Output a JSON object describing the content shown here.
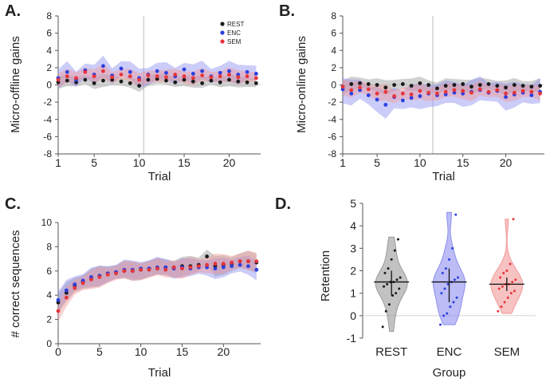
{
  "figure": {
    "series_names": [
      "REST",
      "ENC",
      "SEM"
    ]
  },
  "colors": {
    "REST": "#1a1a1a",
    "ENC": "#2b3fe0",
    "SEM": "#e8353a",
    "REST_band": "#9a9a9a",
    "ENC_band": "#8f8ff0",
    "SEM_band": "#f29a9a"
  },
  "chart_data": [
    {
      "panel_label": "A.",
      "type": "scatter",
      "title": "",
      "xlabel": "Trial",
      "ylabel": "Micro-offline gains",
      "xlim": [
        1,
        23.5
      ],
      "ylim": [
        -8,
        8
      ],
      "xticks": [
        1,
        5,
        10,
        15,
        20
      ],
      "yticks": [
        -8,
        -6,
        -4,
        -2,
        0,
        2,
        4,
        6,
        8
      ],
      "vline_x": 10.5,
      "legend": {
        "position": "top-right",
        "entries": [
          "REST",
          "ENC",
          "SEM"
        ]
      },
      "x": [
        1,
        2,
        3,
        4,
        5,
        6,
        7,
        8,
        9,
        10,
        11,
        12,
        13,
        14,
        15,
        16,
        17,
        18,
        19,
        20,
        21,
        22,
        23
      ],
      "series": [
        {
          "name": "REST",
          "band": 0.6,
          "values": [
            0.3,
            0.5,
            0.3,
            0.6,
            0.2,
            0.5,
            0.6,
            0.4,
            0.2,
            -0.1,
            0.6,
            0.7,
            0.5,
            0.3,
            0.6,
            0.4,
            0.2,
            0.5,
            0.3,
            0.6,
            0.4,
            0.3,
            0.2
          ]
        },
        {
          "name": "ENC",
          "band": 1.0,
          "values": [
            0.8,
            1.5,
            0.6,
            1.7,
            1.2,
            2.2,
            1.1,
            1.9,
            1.5,
            0.8,
            1.2,
            1.6,
            1.4,
            1.0,
            1.8,
            1.3,
            1.6,
            1.0,
            1.4,
            1.6,
            1.2,
            1.5,
            1.3
          ]
        },
        {
          "name": "SEM",
          "band": 0.7,
          "values": [
            0.6,
            1.0,
            0.8,
            1.5,
            1.0,
            1.6,
            0.9,
            1.2,
            1.0,
            0.6,
            1.1,
            1.0,
            0.9,
            1.2,
            1.0,
            0.8,
            1.1,
            0.9,
            1.0,
            1.2,
            0.9,
            1.0,
            0.8
          ]
        }
      ]
    },
    {
      "panel_label": "B.",
      "type": "scatter",
      "title": "",
      "xlabel": "Trial",
      "ylabel": "Micro-online gains",
      "xlim": [
        1,
        24.5
      ],
      "ylim": [
        -8,
        8
      ],
      "xticks": [
        1,
        5,
        10,
        15,
        20
      ],
      "yticks": [
        -8,
        -6,
        -4,
        -2,
        0,
        2,
        4,
        6,
        8
      ],
      "vline_x": 11.5,
      "x": [
        1,
        2,
        3,
        4,
        5,
        6,
        7,
        8,
        9,
        10,
        11,
        12,
        13,
        14,
        15,
        16,
        17,
        18,
        19,
        20,
        21,
        22,
        23,
        24
      ],
      "series": [
        {
          "name": "REST",
          "band": 0.7,
          "values": [
            -0.2,
            0.1,
            0.2,
            0.1,
            0.0,
            -0.3,
            0.0,
            0.1,
            -0.1,
            0.2,
            0.0,
            -0.4,
            -0.1,
            0.0,
            0.1,
            -0.2,
            0.0,
            0.1,
            -0.1,
            -0.3,
            0.0,
            -0.1,
            -0.2,
            -0.1
          ]
        },
        {
          "name": "ENC",
          "band": 1.3,
          "values": [
            -0.5,
            -1.0,
            -0.6,
            -1.2,
            -1.7,
            -2.3,
            -1.4,
            -1.8,
            -1.5,
            -1.3,
            -1.0,
            -1.2,
            -1.1,
            -0.9,
            -1.0,
            -0.8,
            -0.6,
            -0.9,
            -0.7,
            -1.4,
            -1.1,
            -0.9,
            -1.2,
            -0.8
          ]
        },
        {
          "name": "SEM",
          "band": 0.8,
          "values": [
            -0.2,
            -0.6,
            -0.3,
            -0.5,
            -1.0,
            -0.8,
            -1.3,
            -1.0,
            -1.1,
            -0.7,
            -0.9,
            -1.0,
            -0.8,
            -0.6,
            -0.7,
            -0.9,
            -0.5,
            -0.8,
            -0.6,
            -1.0,
            -0.9,
            -0.7,
            -0.8,
            -1.0
          ]
        }
      ]
    },
    {
      "panel_label": "C.",
      "type": "scatter",
      "title": "",
      "xlabel": "Trial",
      "ylabel": "# correct sequences",
      "xlim": [
        0,
        24.5
      ],
      "ylim": [
        0,
        10
      ],
      "xticks": [
        0,
        5,
        10,
        15,
        20
      ],
      "yticks": [
        0,
        2,
        4,
        6,
        8,
        10
      ],
      "x": [
        0,
        1,
        2,
        3,
        4,
        5,
        6,
        7,
        8,
        9,
        10,
        11,
        12,
        13,
        14,
        15,
        16,
        17,
        18,
        19,
        20,
        21,
        22,
        23,
        24
      ],
      "series": [
        {
          "name": "REST",
          "band": 0.7,
          "values": [
            3.4,
            4.2,
            4.8,
            5.1,
            5.4,
            5.6,
            5.8,
            5.9,
            6.0,
            6.0,
            6.1,
            6.2,
            6.2,
            6.3,
            6.3,
            6.4,
            6.4,
            6.5,
            7.2,
            6.4,
            6.5,
            6.6,
            6.8,
            6.8,
            6.7
          ]
        },
        {
          "name": "ENC",
          "band": 0.7,
          "values": [
            3.6,
            4.4,
            4.9,
            5.2,
            5.5,
            5.6,
            5.8,
            5.9,
            6.1,
            6.1,
            6.2,
            6.2,
            6.3,
            6.3,
            6.2,
            6.3,
            6.2,
            6.3,
            6.3,
            6.2,
            6.3,
            6.4,
            6.5,
            6.4,
            6.1
          ]
        },
        {
          "name": "SEM",
          "band": 0.7,
          "values": [
            2.7,
            3.8,
            4.6,
            5.0,
            5.3,
            5.5,
            5.7,
            5.8,
            6.0,
            6.0,
            6.1,
            6.1,
            6.2,
            6.1,
            6.3,
            6.2,
            6.3,
            6.4,
            6.5,
            6.6,
            6.6,
            6.7,
            6.8,
            6.8,
            6.8
          ]
        }
      ]
    },
    {
      "panel_label": "D.",
      "type": "violin",
      "title": "",
      "xlabel": "Group",
      "ylabel": "Retention",
      "ylim": [
        -1,
        5
      ],
      "yticks": [
        -1,
        0,
        1,
        2,
        3,
        4,
        5
      ],
      "categories": [
        "REST",
        "ENC",
        "SEM"
      ],
      "groups": [
        {
          "name": "REST",
          "median": 1.5,
          "q1": 0.9,
          "q3": 2.0,
          "min": -0.7,
          "max": 3.5,
          "points": [
            -0.5,
            0.2,
            0.5,
            0.9,
            1.0,
            1.2,
            1.3,
            1.4,
            1.5,
            1.5,
            1.6,
            1.7,
            1.9,
            2.1,
            2.5,
            2.9,
            3.4
          ]
        },
        {
          "name": "ENC",
          "median": 1.5,
          "q1": 0.6,
          "q3": 2.1,
          "min": -0.4,
          "max": 4.6,
          "points": [
            -0.4,
            0.0,
            0.1,
            0.4,
            0.6,
            0.8,
            1.0,
            1.2,
            1.4,
            1.5,
            1.6,
            1.7,
            1.9,
            2.1,
            2.5,
            3.0,
            4.5
          ]
        },
        {
          "name": "SEM",
          "median": 1.4,
          "q1": 1.1,
          "q3": 1.7,
          "min": 0.1,
          "max": 4.3,
          "points": [
            0.2,
            0.4,
            0.6,
            0.8,
            1.0,
            1.1,
            1.2,
            1.3,
            1.4,
            1.4,
            1.5,
            1.6,
            1.7,
            1.9,
            2.0,
            2.3,
            4.3
          ]
        }
      ]
    }
  ]
}
